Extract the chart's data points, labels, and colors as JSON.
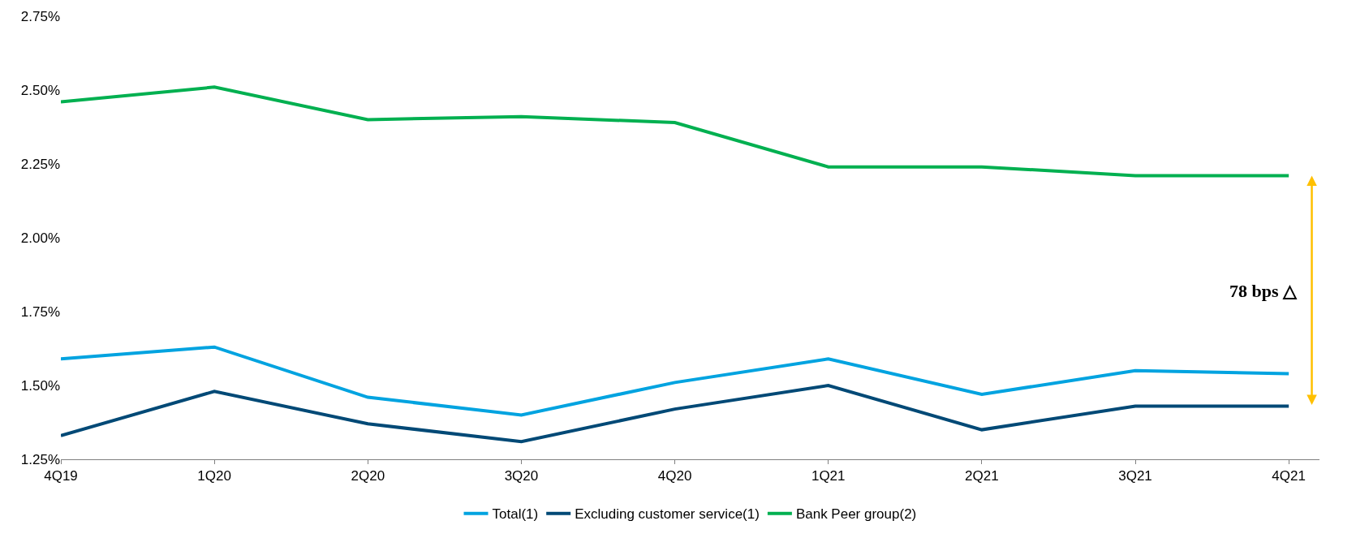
{
  "chart_data": {
    "type": "line",
    "categories": [
      "4Q19",
      "1Q20",
      "2Q20",
      "3Q20",
      "4Q20",
      "1Q21",
      "2Q21",
      "3Q21",
      "4Q21"
    ],
    "series": [
      {
        "name": "Total(1)",
        "color": "#00a3e0",
        "values": [
          1.59,
          1.63,
          1.46,
          1.4,
          1.51,
          1.59,
          1.47,
          1.55,
          1.54
        ]
      },
      {
        "name": "Excluding customer service(1)",
        "color": "#004976",
        "values": [
          1.33,
          1.48,
          1.37,
          1.31,
          1.42,
          1.5,
          1.35,
          1.43,
          1.43
        ]
      },
      {
        "name": "Bank Peer group(2)",
        "color": "#00b050",
        "values": [
          2.46,
          2.51,
          2.4,
          2.41,
          2.39,
          2.24,
          2.24,
          2.21,
          2.21
        ]
      }
    ],
    "ylim": [
      1.25,
      2.75
    ],
    "yticks": [
      {
        "value": 1.25,
        "label": "1.25%"
      },
      {
        "value": 1.5,
        "label": "1.50%"
      },
      {
        "value": 1.75,
        "label": "1.75%"
      },
      {
        "value": 2.0,
        "label": "2.00%"
      },
      {
        "value": 2.25,
        "label": "2.25%"
      },
      {
        "value": 2.5,
        "label": "2.50%"
      },
      {
        "value": 2.75,
        "label": "2.75%"
      }
    ],
    "annotations": [
      "78 bps △"
    ],
    "legend": "bottom",
    "marker": "none",
    "line_style": "solid"
  }
}
